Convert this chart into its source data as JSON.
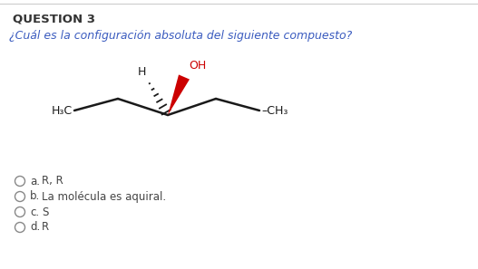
{
  "title": "QUESTION 3",
  "question": "¿Cuál es la configuración absoluta del siguiente compuesto?",
  "bg_color": "#ffffff",
  "title_color": "#333333",
  "question_color": "#3a5bbf",
  "option_color": "#444444",
  "option_circle_color": "#888888",
  "oh_color": "#cc0000",
  "bond_color": "#1a1a1a",
  "wedge_color": "#cc0000",
  "top_border_color": "#cccccc",
  "options": [
    {
      "label": "a.",
      "text": "R, R"
    },
    {
      "label": "b.",
      "text": "La molécula es aquiral."
    },
    {
      "label": "c.",
      "text": "S"
    },
    {
      "label": "d.",
      "text": "R"
    }
  ]
}
